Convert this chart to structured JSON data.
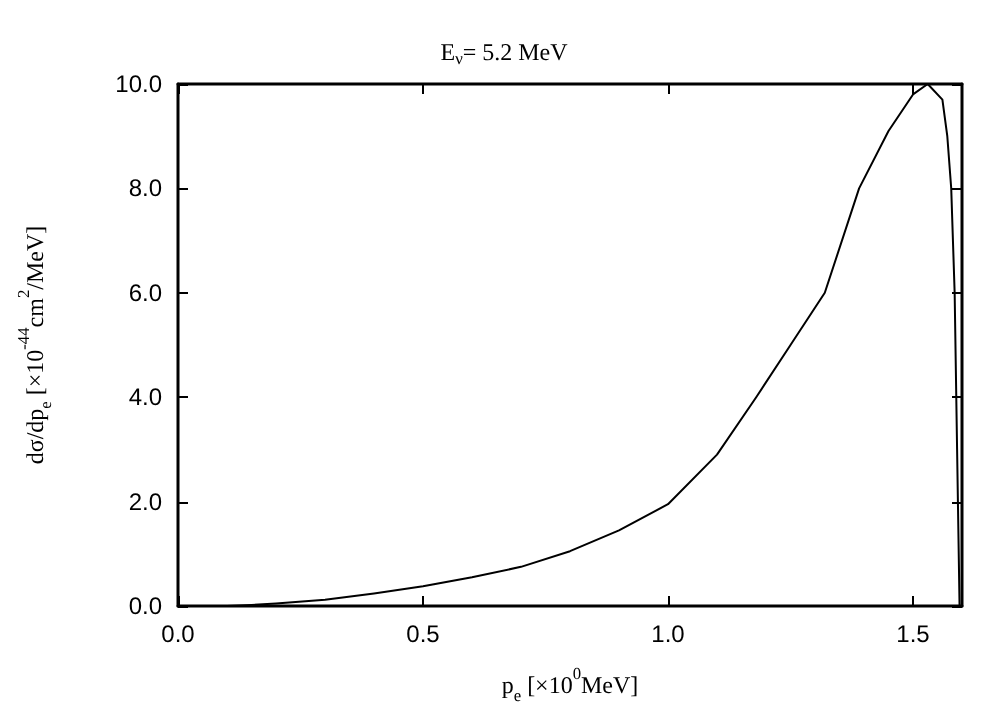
{
  "chart_data": {
    "type": "line",
    "title": "E$_{ν}$= 5.2 MeV",
    "xlabel": "p$_{e}$ [×10$^{0}$MeV]",
    "ylabel": "dσ/dp$_{e}$ [×10$^{-44}$cm$^{2}$/MeV]",
    "xlim": [
      0,
      1.6
    ],
    "ylim": [
      0,
      10
    ],
    "xticks": [
      {
        "value": 0,
        "label": "0.0"
      },
      {
        "value": 0.5,
        "label": "0.5"
      },
      {
        "value": 1,
        "label": "1.0"
      },
      {
        "value": 1.5,
        "label": "1.5"
      }
    ],
    "yticks": [
      {
        "value": 0,
        "label": "0.0"
      },
      {
        "value": 2,
        "label": "2.0"
      },
      {
        "value": 4,
        "label": "4.0"
      },
      {
        "value": 6,
        "label": "6.0"
      },
      {
        "value": 8,
        "label": "8.0"
      },
      {
        "value": 10,
        "label": "10.0"
      }
    ],
    "marker": "none",
    "line_style": "solid",
    "series": [
      {
        "color": "#000000",
        "x": [
          0.1,
          0.15,
          0.2,
          0.3,
          0.4,
          0.5,
          0.6,
          0.7,
          0.8,
          0.9,
          1.0,
          1.1,
          1.18,
          1.25,
          1.32,
          1.39,
          1.45,
          1.5,
          1.53,
          1.56,
          1.57,
          1.578,
          1.585,
          1.59,
          1.595
        ],
        "values": [
          0,
          0.02,
          0.05,
          0.12,
          0.24,
          0.38,
          0.55,
          0.75,
          1.05,
          1.45,
          1.95,
          2.9,
          4.0,
          5.0,
          6.0,
          8.0,
          9.1,
          9.8,
          10.0,
          9.7,
          9.0,
          8.0,
          6.0,
          3.0,
          0
        ]
      }
    ]
  }
}
